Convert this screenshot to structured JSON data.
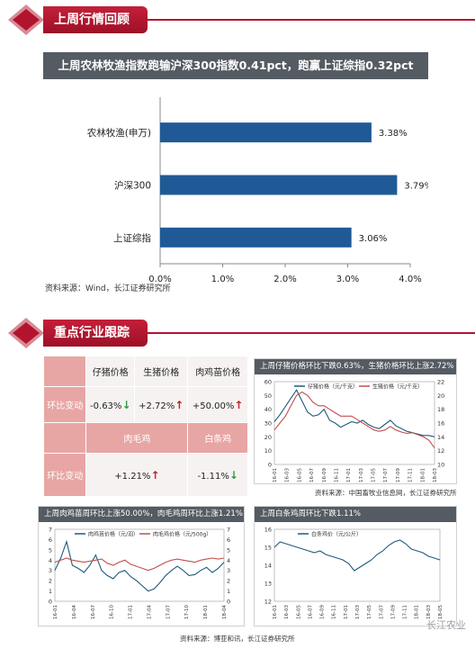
{
  "section1": {
    "title": "上周行情回顾"
  },
  "section2": {
    "title": "重点行业跟踪"
  },
  "bar_source": "资料来源：Wind，长江证券研究所",
  "table": {
    "headers1": [
      "仔猪价格",
      "生猪价格",
      "肉鸡苗价格"
    ],
    "row_label": "环比变动",
    "row1": [
      {
        "value": "-0.63%",
        "dir": "down"
      },
      {
        "value": "+2.72%",
        "dir": "up"
      },
      {
        "value": "+50.00%",
        "dir": "up"
      }
    ],
    "headers2": [
      "肉毛鸡",
      "白条鸡"
    ],
    "row2": [
      {
        "value": "+1.21%",
        "dir": "up"
      },
      {
        "value": "-1.11%",
        "dir": "down"
      }
    ],
    "arrow_up": "↑",
    "arrow_down": "↓"
  },
  "charts_meta": {
    "pig": {
      "title": "上周仔猪价格环比下跌0.63%，生猪价格环比上涨2.72%",
      "source": "资料来源：中国畜牧业信息网，长江证券研究所"
    },
    "chicken": {
      "title": "上周肉鸡苗周环比上涨50.00%，肉毛鸡周环比上涨1.21%",
      "source": "资料来源：博亚和讯，长江证券研究所"
    },
    "white": {
      "title": "上周白条鸡周环比下跌1.11%"
    }
  },
  "watermark": "长江农业",
  "colors": {
    "brand_red": "#b3142d",
    "bar_blue": "#1f5a96",
    "line_blue": "#1f5a7a",
    "line_red": "#c0504d"
  },
  "chart_data": [
    {
      "type": "bar",
      "orientation": "horizontal",
      "title": "上周农林牧渔指数跑输沪深300指数0.41pct，跑赢上证综指0.32pct",
      "categories": [
        "农林牧渔(申万)",
        "沪深300",
        "上证综指"
      ],
      "values": [
        3.38,
        3.79,
        3.06
      ],
      "value_labels": [
        "3.38%",
        "3.79%",
        "3.06%"
      ],
      "xlim": [
        0,
        4.0
      ],
      "xticks": [
        "0.0%",
        "1.0%",
        "2.0%",
        "3.0%",
        "4.0%"
      ],
      "grid": false
    },
    {
      "type": "line",
      "x_ticks": [
        "16-01",
        "16-03",
        "16-05",
        "16-07",
        "16-09",
        "16-11",
        "17-01",
        "17-03",
        "17-05",
        "17-07",
        "17-09",
        "17-11",
        "18-01",
        "18-03"
      ],
      "ylim_left": [
        0,
        60
      ],
      "yticks_left": [
        "0",
        "10",
        "20",
        "30",
        "40",
        "50",
        "60"
      ],
      "ylim_right": [
        10,
        22
      ],
      "yticks_right": [
        "10",
        "12",
        "14",
        "16",
        "18",
        "20",
        "22"
      ],
      "series": [
        {
          "name": "仔猪价格（元/千克）",
          "axis": "left",
          "values": [
            31,
            36,
            42,
            48,
            54,
            46,
            38,
            35,
            36,
            40,
            32,
            30,
            27,
            29,
            31,
            30,
            32,
            29,
            27,
            26,
            29,
            32,
            28,
            26,
            24,
            23,
            22,
            21,
            21,
            20
          ]
        },
        {
          "name": "生猪价格（元/千克）",
          "axis": "right",
          "values": [
            15,
            16,
            17,
            18.5,
            20,
            20.5,
            20,
            19,
            18.5,
            18.5,
            18,
            17.5,
            17,
            17,
            17,
            16.5,
            16,
            15.5,
            15,
            14.8,
            15,
            15.5,
            15,
            14.7,
            14.5,
            14.6,
            14.3,
            14,
            13.5,
            12.4
          ]
        }
      ],
      "grid": false,
      "legend": "top"
    },
    {
      "type": "line",
      "x_ticks": [
        "16-01",
        "16-04",
        "16-07",
        "16-10",
        "17-01",
        "17-04",
        "17-07",
        "17-10",
        "18-01",
        "18-04"
      ],
      "ylim_left": [
        0,
        7
      ],
      "yticks_left": [
        "0",
        "1",
        "2",
        "3",
        "4",
        "5",
        "6",
        "7"
      ],
      "ylim_right": [
        0,
        7
      ],
      "yticks_right": [
        "0",
        "1",
        "2",
        "3",
        "4",
        "5",
        "6",
        "7"
      ],
      "series": [
        {
          "name": "肉鸡苗价格（元/羽）",
          "axis": "left",
          "values": [
            3.0,
            4.2,
            5.8,
            3.5,
            3.2,
            2.8,
            3.5,
            4.5,
            3.0,
            2.5,
            2.2,
            2.8,
            3.0,
            2.4,
            2.0,
            1.5,
            1.0,
            1.2,
            1.8,
            2.5,
            3.0,
            3.4,
            3.0,
            2.5,
            2.6,
            3.0,
            3.3,
            2.8,
            3.2,
            3.8
          ]
        },
        {
          "name": "肉毛鸡价格（元/500g）",
          "axis": "right",
          "values": [
            3.8,
            4.0,
            4.2,
            4.0,
            3.9,
            3.8,
            3.9,
            4.0,
            4.1,
            3.7,
            3.5,
            3.8,
            4.0,
            3.6,
            3.4,
            3.2,
            3.0,
            3.2,
            3.5,
            3.8,
            4.0,
            4.1,
            4.0,
            3.9,
            3.8,
            4.0,
            4.1,
            4.2,
            4.1,
            4.2
          ]
        }
      ],
      "grid": false,
      "legend": "top"
    },
    {
      "type": "line",
      "x_ticks": [
        "16-01",
        "16-03",
        "16-05",
        "16-07",
        "16-09",
        "16-11",
        "17-01",
        "17-03",
        "17-05",
        "17-07",
        "17-09",
        "17-11",
        "18-01",
        "18-03",
        "18-05"
      ],
      "ylim_left": [
        12,
        16
      ],
      "yticks_left": [
        "12",
        "13",
        "14",
        "15",
        "16"
      ],
      "series": [
        {
          "name": "白条鸡价（元/公斤）",
          "axis": "left",
          "values": [
            15.0,
            15.3,
            15.2,
            15.1,
            15.0,
            14.9,
            14.8,
            14.7,
            14.8,
            14.6,
            14.5,
            14.4,
            14.3,
            14.1,
            13.7,
            13.9,
            14.1,
            14.3,
            14.6,
            14.8,
            15.1,
            15.3,
            15.4,
            15.2,
            14.9,
            14.8,
            14.7,
            14.5,
            14.4,
            14.3
          ]
        }
      ],
      "grid": false,
      "legend": "top"
    }
  ]
}
